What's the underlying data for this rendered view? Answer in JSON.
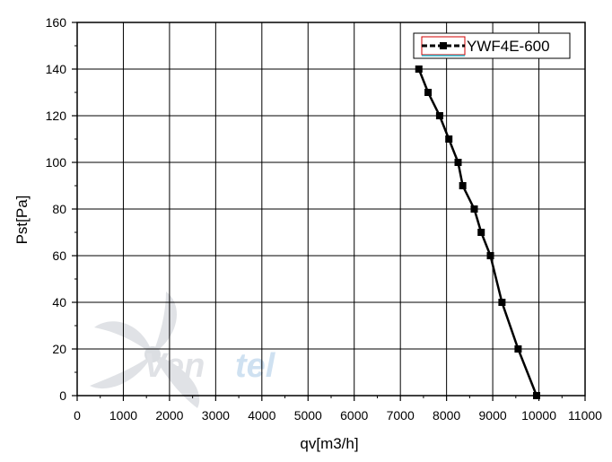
{
  "chart_data": {
    "type": "line",
    "xlabel": "qv[m3/h]",
    "ylabel": "Pst[Pa]",
    "xlim": [
      0,
      11000
    ],
    "ylim": [
      0,
      160
    ],
    "x_ticks": [
      0,
      1000,
      2000,
      3000,
      4000,
      5000,
      6000,
      7000,
      8000,
      9000,
      10000,
      11000
    ],
    "y_ticks": [
      0,
      20,
      40,
      60,
      80,
      100,
      120,
      140,
      160
    ],
    "grid": true,
    "legend_position": "top-right",
    "series": [
      {
        "name": "YWF4E-600",
        "color": "#000000",
        "marker": "square",
        "x": [
          7400,
          7600,
          7850,
          8050,
          8250,
          8350,
          8600,
          8750,
          8950,
          9200,
          9550,
          9950
        ],
        "y": [
          140,
          130,
          120,
          110,
          100,
          90,
          80,
          70,
          60,
          40,
          20,
          0
        ]
      }
    ]
  },
  "watermark": {
    "text_a": "Ven",
    "text_b": "tel",
    "icon": "fan-icon",
    "color_a": "#c8ccd2",
    "color_b": "#a9c9e6"
  }
}
